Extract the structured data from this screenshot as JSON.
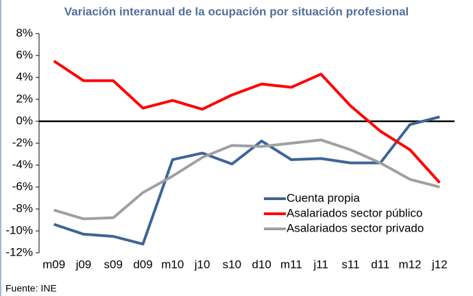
{
  "chart_data": {
    "type": "line",
    "title": "Variación interanual de la ocupación por situación profesional",
    "source": "Fuente: INE",
    "categories": [
      "m09",
      "j09",
      "s09",
      "d09",
      "m10",
      "j10",
      "s10",
      "d10",
      "m11",
      "j11",
      "s11",
      "d11",
      "m12",
      "j12"
    ],
    "series": [
      {
        "name": "Cuenta propia",
        "color": "#3e6496",
        "values": [
          -9.4,
          -10.3,
          -10.5,
          -11.2,
          -3.5,
          -2.9,
          -3.9,
          -1.8,
          -3.5,
          -3.4,
          -3.8,
          -3.8,
          -0.3,
          0.4
        ]
      },
      {
        "name": "Asalariados sector público",
        "color": "#ff0000",
        "values": [
          5.5,
          3.7,
          3.7,
          1.2,
          1.9,
          1.1,
          2.4,
          3.4,
          3.1,
          4.3,
          1.4,
          -0.9,
          -2.6,
          -5.6
        ]
      },
      {
        "name": "Asalariados sector privado",
        "color": "#a0a0a0",
        "values": [
          -8.1,
          -8.9,
          -8.8,
          -6.5,
          -5.0,
          -3.3,
          -2.2,
          -2.3,
          -2.0,
          -1.7,
          -2.6,
          -3.8,
          -5.3,
          -6.0
        ]
      }
    ],
    "ylim": [
      -12,
      8
    ],
    "yticks": [
      {
        "value": -12,
        "label": "-12%"
      },
      {
        "value": -10,
        "label": "-10%"
      },
      {
        "value": -8,
        "label": "-8%"
      },
      {
        "value": -6,
        "label": "-6%"
      },
      {
        "value": -4,
        "label": "-4%"
      },
      {
        "value": -2,
        "label": "-2%"
      },
      {
        "value": 0,
        "label": "0%"
      },
      {
        "value": 2,
        "label": "2%"
      },
      {
        "value": 4,
        "label": "4%"
      },
      {
        "value": 6,
        "label": "6%"
      },
      {
        "value": 8,
        "label": "8%"
      }
    ],
    "legend": "lower right"
  }
}
